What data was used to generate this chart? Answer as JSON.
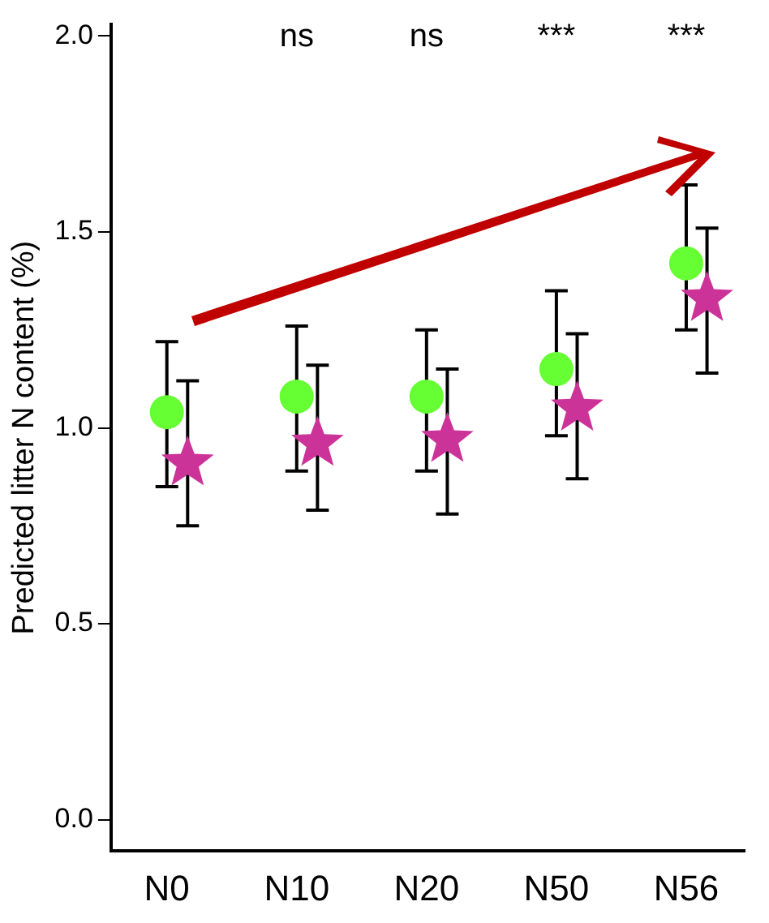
{
  "chart_data": {
    "type": "scatter",
    "ylabel": "Predicted litter N content (%)",
    "categories": [
      "N0",
      "N10",
      "N20",
      "N50",
      "N56"
    ],
    "ylim": [
      -0.08,
      2.03
    ],
    "yticks": [
      {
        "value": 0,
        "label": "0.0"
      },
      0.5,
      {
        "value": 1,
        "label": "1.0"
      },
      1.5,
      {
        "value": 2,
        "label": "2.0"
      }
    ],
    "grid": false,
    "legend": false,
    "series": [
      {
        "color": "#66ff33",
        "marker": "circle",
        "values": [
          1.04,
          1.08,
          1.08,
          1.15,
          1.42
        ],
        "errors": [
          [
            0.85,
            1.22
          ],
          [
            0.89,
            1.26
          ],
          [
            0.89,
            1.25
          ],
          [
            0.98,
            1.35
          ],
          [
            1.25,
            1.62
          ]
        ]
      },
      {
        "color": "#cc3399",
        "marker": "star",
        "values": [
          0.91,
          0.96,
          0.97,
          1.05,
          1.33
        ],
        "errors": [
          [
            0.75,
            1.12
          ],
          [
            0.79,
            1.16
          ],
          [
            0.78,
            1.15
          ],
          [
            0.87,
            1.24
          ],
          [
            1.14,
            1.51
          ]
        ]
      }
    ],
    "annotations": [
      "ns",
      "ns",
      "***",
      "***"
    ]
  }
}
